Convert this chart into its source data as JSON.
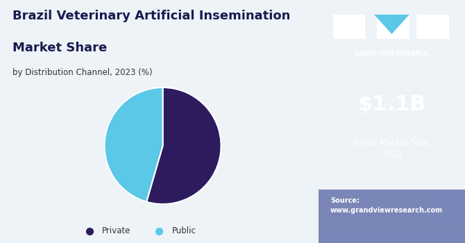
{
  "title_line1": "Brazil Veterinary Artificial Insemination",
  "title_line2": "Market Share",
  "subtitle": "by Distribution Channel, 2023 (%)",
  "slices": [
    54.5,
    45.5
  ],
  "labels": [
    "Private",
    "Public"
  ],
  "colors": [
    "#2d1b5e",
    "#5bc8e8"
  ],
  "legend_dot_colors": [
    "#2d1b5e",
    "#5bc8e8"
  ],
  "bg_color": "#eef3f8",
  "sidebar_bg": "#3b1a6b",
  "market_size_value": "$1.1B",
  "market_size_label": "Brazil Market Size,\n2023",
  "source_text": "Source:\nwww.grandviewresearch.com",
  "title_color": "#1a1a4e",
  "subtitle_color": "#333333"
}
